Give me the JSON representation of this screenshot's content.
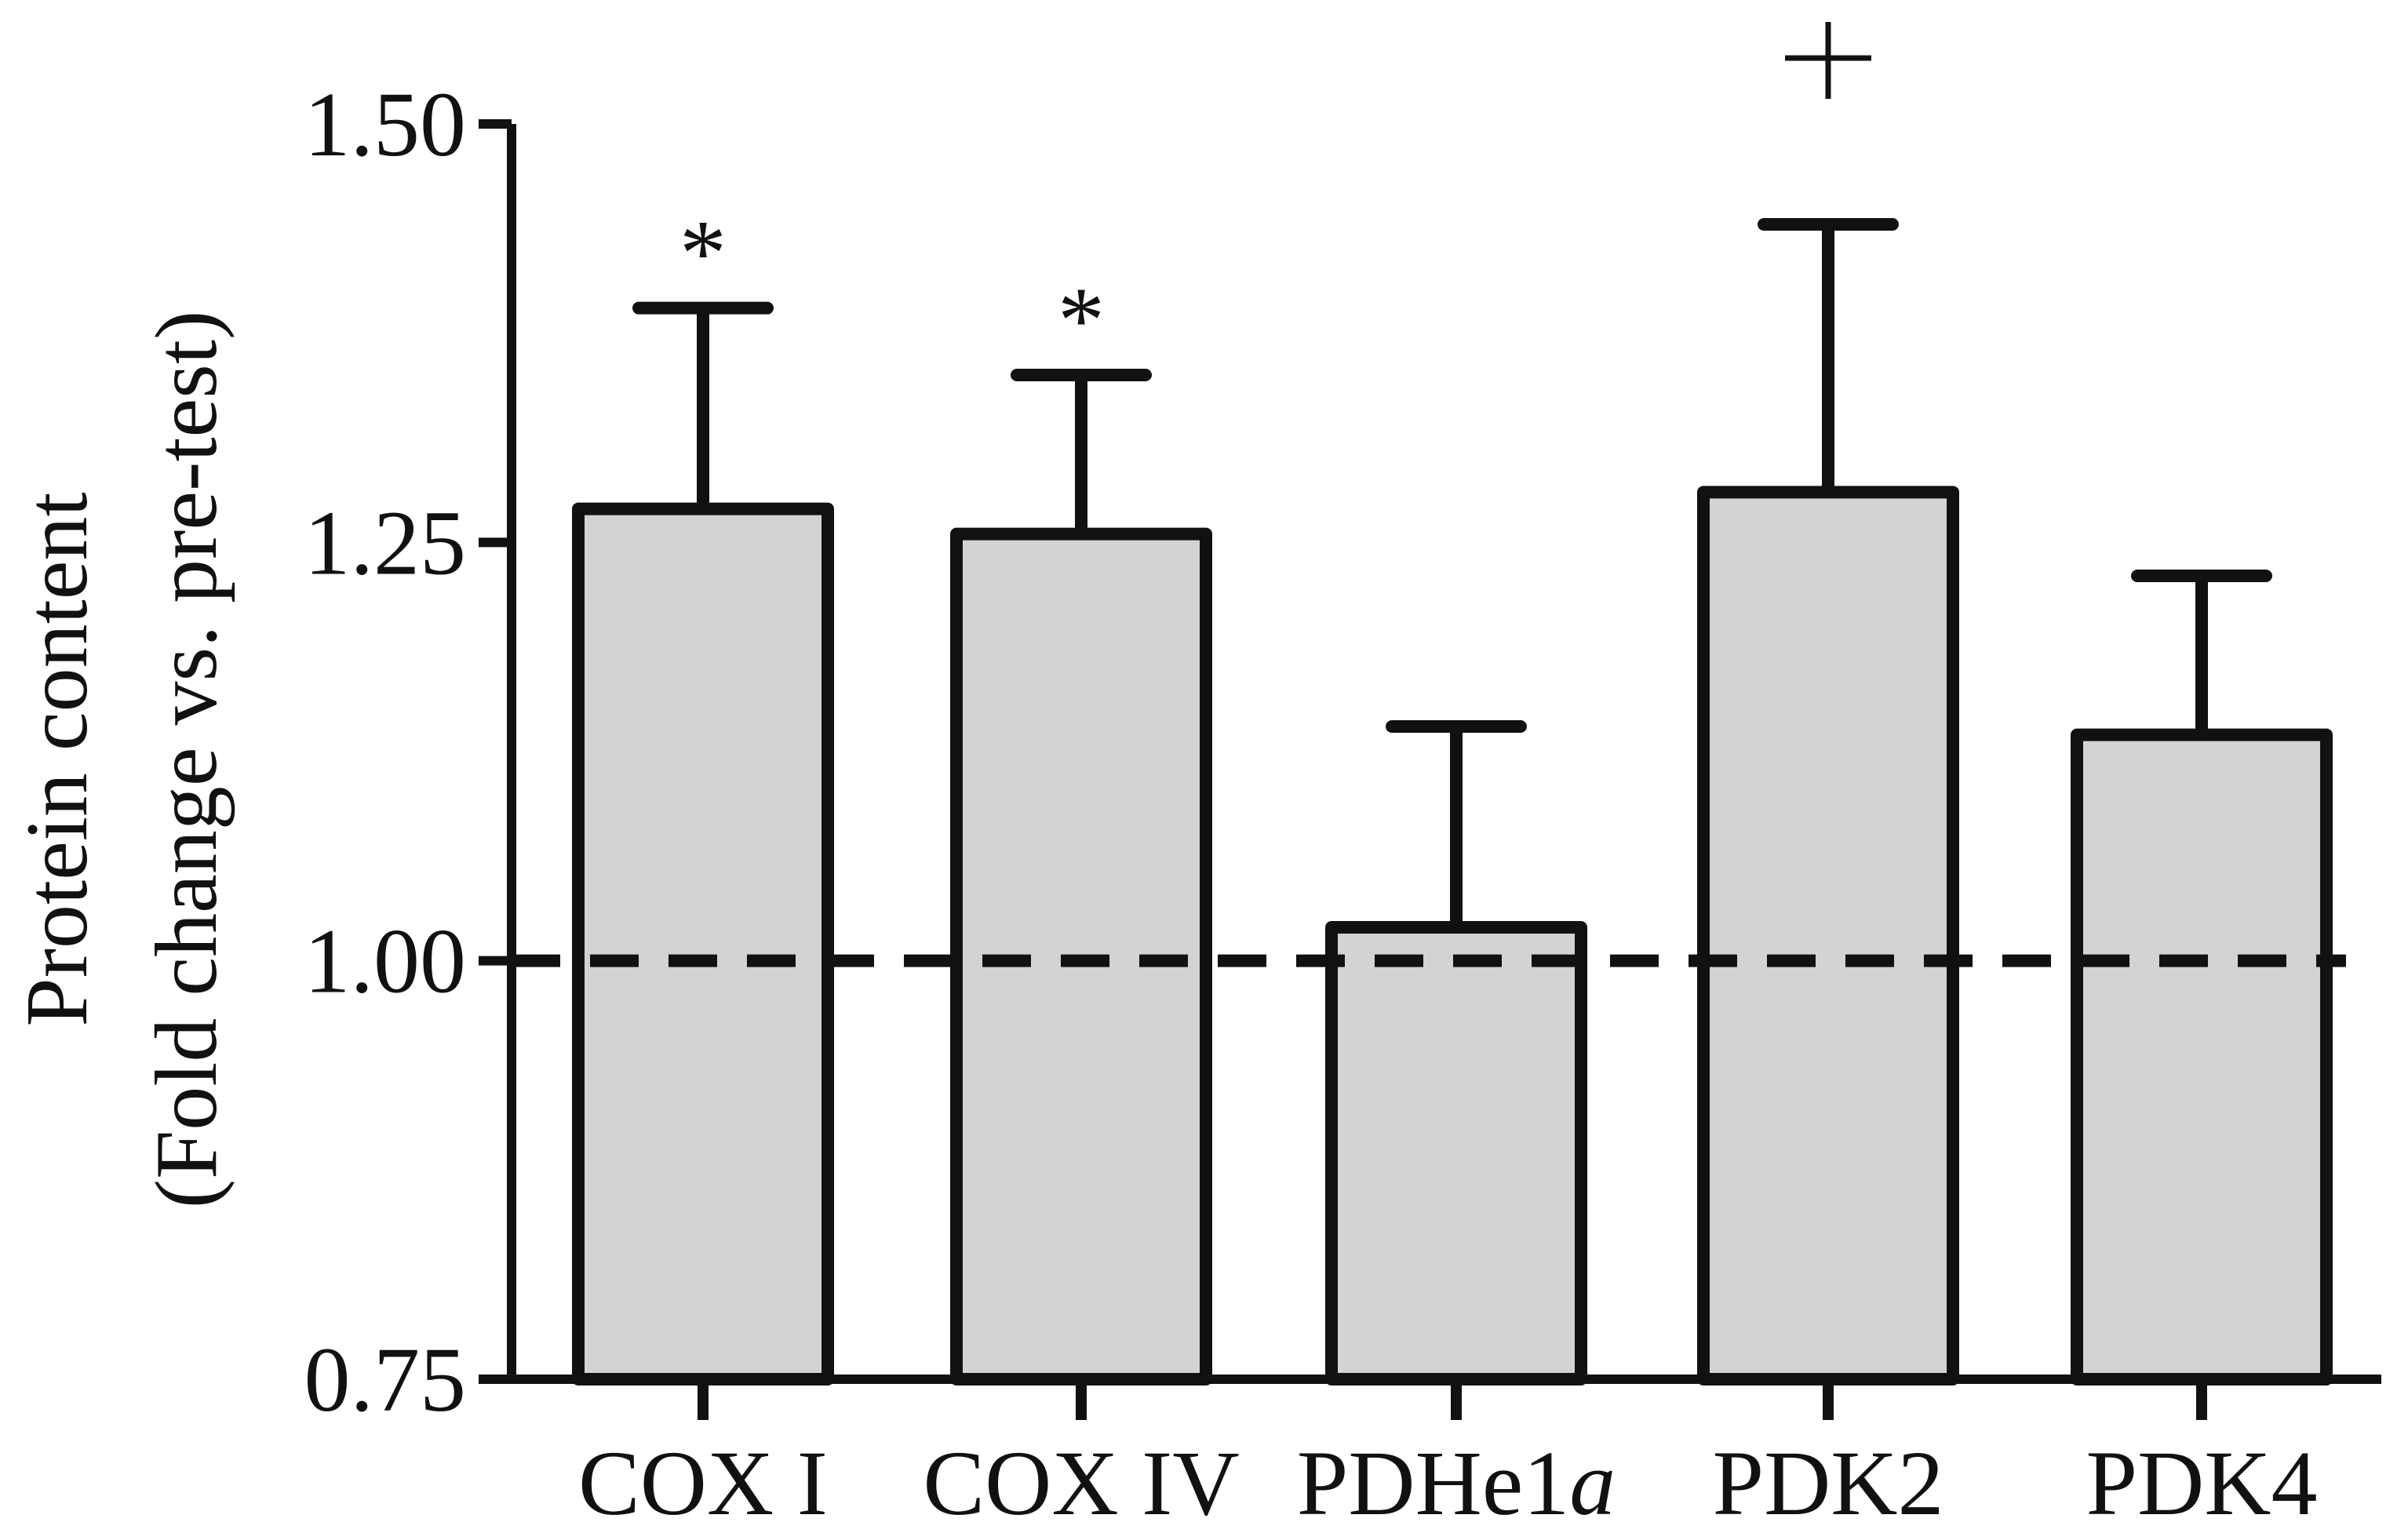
{
  "chart_data": {
    "type": "bar",
    "categories": [
      "COX  I",
      "COX IV",
      "PDHe1",
      "PDK2",
      "PDK4"
    ],
    "category_suffix_italic": [
      null,
      null,
      "a",
      null,
      null
    ],
    "values": [
      1.27,
      1.255,
      1.02,
      1.28,
      1.135
    ],
    "error_upper": [
      1.39,
      1.35,
      1.14,
      1.44,
      1.23
    ],
    "significance": [
      "*",
      "*",
      "",
      "+",
      ""
    ],
    "ylabel_line1": "Protein content",
    "ylabel_line2": "(Fold change vs. pre-test)",
    "ylim": [
      0.75,
      1.5
    ],
    "yticks": [
      0.75,
      1.0,
      1.25,
      1.5
    ],
    "ytick_labels": [
      "0.75",
      "1.00",
      "1.25",
      "1.50"
    ],
    "reference_line": 1.0,
    "grid": false,
    "colors": {
      "bar_fill": "#d3d3d3",
      "stroke": "#111111"
    }
  }
}
